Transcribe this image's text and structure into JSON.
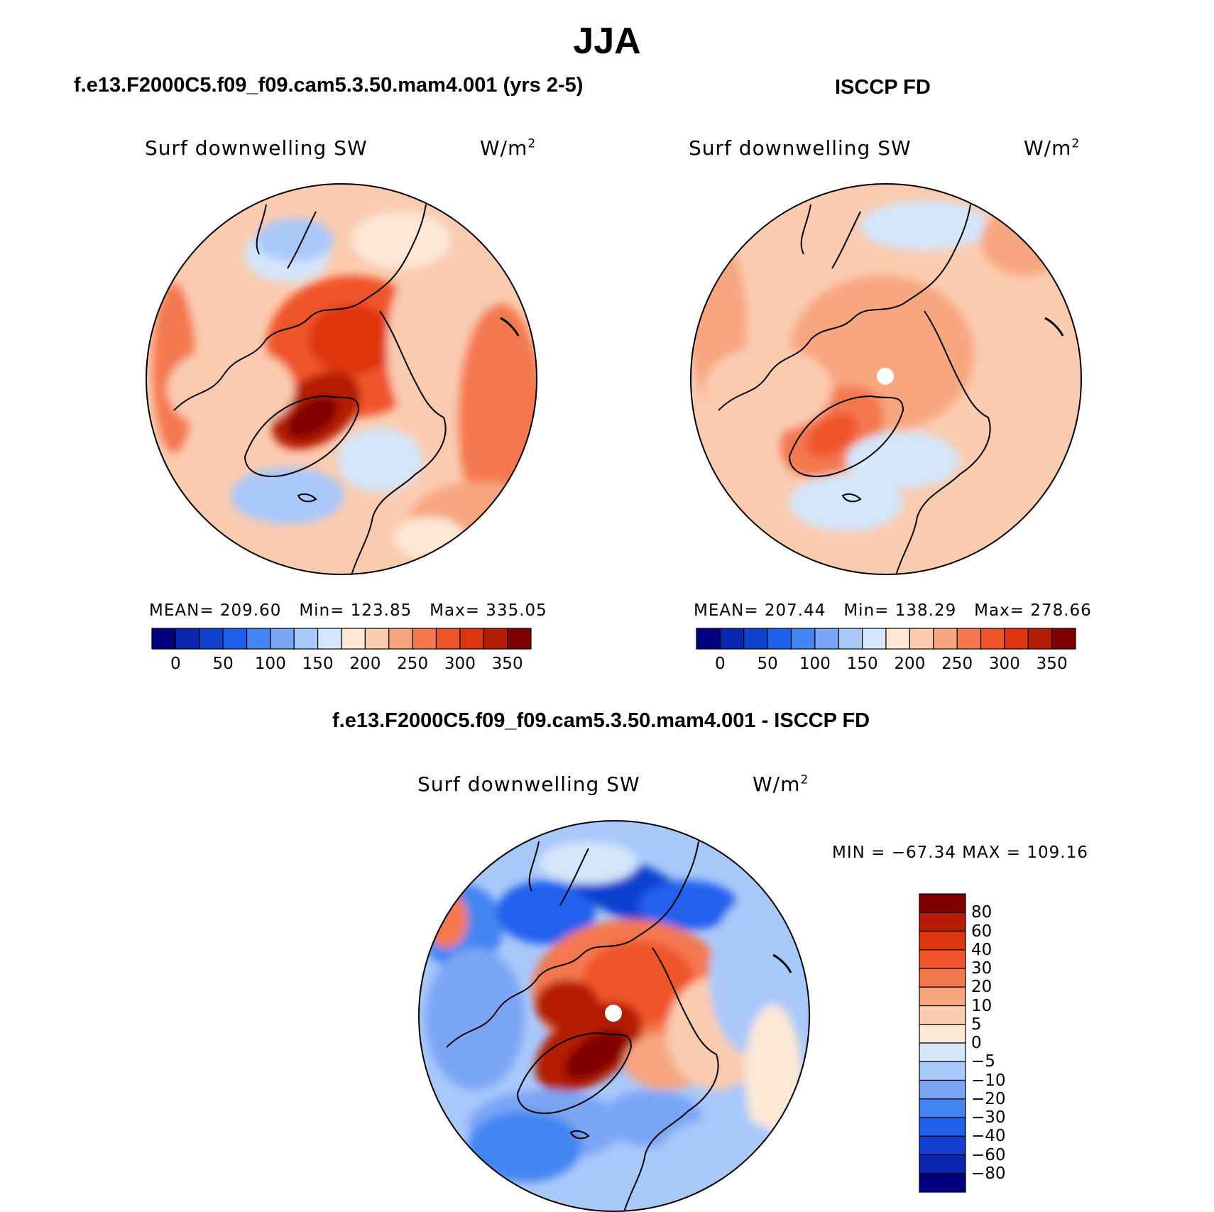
{
  "title": "JJA",
  "colors": {
    "seq": [
      "#000080",
      "#0a25b0",
      "#1040d0",
      "#2060ee",
      "#4385f2",
      "#7aa6f5",
      "#a9c8fa",
      "#d3e6fb",
      "#fde8d6",
      "#fbcbb0",
      "#f8a680",
      "#f4784f",
      "#f0542a",
      "#de360f",
      "#b41c06",
      "#800000"
    ],
    "div": [
      "#000080",
      "#0a25b0",
      "#1040d0",
      "#2060ee",
      "#4385f2",
      "#7aa6f5",
      "#a9c8fa",
      "#d3e6fb",
      "#fde8d6",
      "#fbcbb0",
      "#f8a680",
      "#f4784f",
      "#f0542a",
      "#de360f",
      "#b41c06",
      "#800000"
    ]
  },
  "chart_data": [
    {
      "type": "heatmap",
      "title": "f.e13.F2000C5.f09_f09.cam5.3.50.mam4.001 (yrs 2-5)",
      "variable": "Surf downwelling SW",
      "units_base": "W/m",
      "units_exp": "2",
      "projection": "north polar stereographic",
      "stats": {
        "mean_label": "MEAN=",
        "mean": "209.60",
        "min_label": "Min=",
        "min": "123.85",
        "max_label": "Max=",
        "max": "335.05"
      },
      "colorbar": {
        "orientation": "horizontal",
        "ticks": [
          "0",
          "50",
          "100",
          "150",
          "200",
          "250",
          "300",
          "350"
        ]
      }
    },
    {
      "type": "heatmap",
      "title": "ISCCP FD",
      "variable": "Surf downwelling SW",
      "units_base": "W/m",
      "units_exp": "2",
      "projection": "north polar stereographic",
      "stats": {
        "mean_label": "MEAN=",
        "mean": "207.44",
        "min_label": "Min=",
        "min": "138.29",
        "max_label": "Max=",
        "max": "278.66"
      },
      "colorbar": {
        "orientation": "horizontal",
        "ticks": [
          "0",
          "50",
          "100",
          "150",
          "200",
          "250",
          "300",
          "350"
        ]
      }
    },
    {
      "type": "heatmap",
      "title": "f.e13.F2000C5.f09_f09.cam5.3.50.mam4.001 - ISCCP FD",
      "variable": "Surf downwelling SW",
      "units_base": "W/m",
      "units_exp": "2",
      "projection": "north polar stereographic",
      "stats_text": "MIN = −67.34 MAX = 109.16",
      "colorbar": {
        "orientation": "vertical",
        "ticks": [
          "80",
          "60",
          "40",
          "30",
          "20",
          "10",
          "5",
          "0",
          "−5",
          "−10",
          "−20",
          "−30",
          "−40",
          "−60",
          "−80"
        ]
      }
    }
  ]
}
